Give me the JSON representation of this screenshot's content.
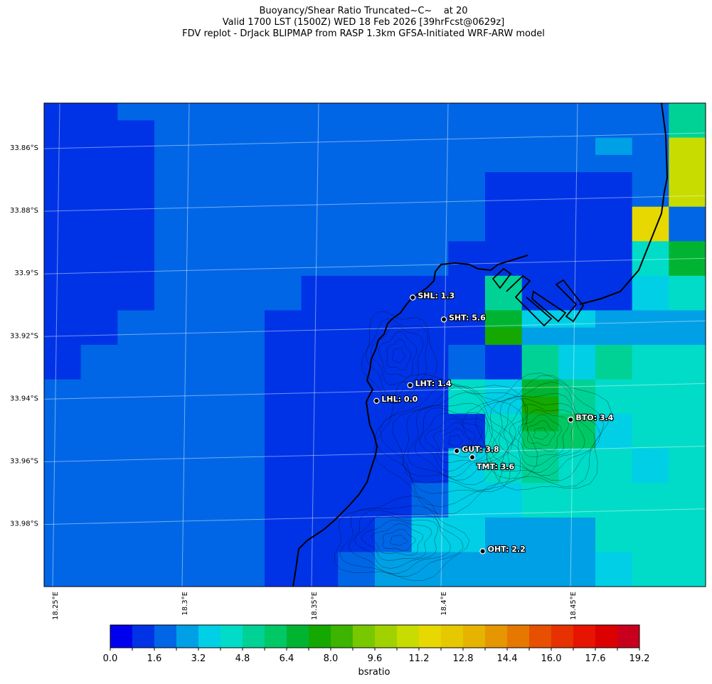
{
  "title": {
    "line1": "Buoyancy/Shear Ratio Truncated~C~    at 20",
    "line2": "Valid 1700 LST (1500Z) WED 18 Feb 2026 [39hrFcst@0629z]",
    "line3": "FDV replot - DrJack BLIPMAP from RASP 1.3km GFSA-Initiated WRF-ARW model"
  },
  "map": {
    "lat_labels": [
      "33.86°S",
      "33.88°S",
      "33.9°S",
      "33.92°S",
      "33.94°S",
      "33.96°S",
      "33.98°S"
    ],
    "lon_labels": [
      "18.25°E",
      "18.3°E",
      "18.35°E",
      "18.4°E",
      "18.45°E"
    ],
    "cell_value_grid": [
      [
        1,
        1,
        2,
        2,
        2,
        2,
        2,
        2,
        2,
        2,
        2,
        2,
        2,
        2,
        2,
        2,
        2,
        6
      ],
      [
        1,
        1,
        1,
        2,
        2,
        2,
        2,
        2,
        2,
        2,
        2,
        2,
        2,
        2,
        2,
        2,
        2,
        6
      ],
      [
        1,
        1,
        1,
        2,
        2,
        2,
        2,
        2,
        2,
        2,
        2,
        2,
        2,
        2,
        2,
        3,
        2,
        13
      ],
      [
        1,
        1,
        1,
        2,
        2,
        2,
        2,
        2,
        2,
        2,
        2,
        2,
        2,
        2,
        2,
        2,
        2,
        13
      ],
      [
        1,
        1,
        1,
        2,
        2,
        2,
        2,
        2,
        2,
        2,
        2,
        2,
        1,
        1,
        1,
        1,
        2,
        13
      ],
      [
        1,
        1,
        1,
        2,
        2,
        2,
        2,
        2,
        2,
        2,
        2,
        2,
        1,
        1,
        1,
        1,
        2,
        13
      ],
      [
        1,
        1,
        1,
        2,
        2,
        2,
        2,
        2,
        2,
        2,
        2,
        2,
        1,
        1,
        1,
        1,
        14,
        2
      ],
      [
        1,
        1,
        1,
        2,
        2,
        2,
        2,
        2,
        2,
        2,
        2,
        2,
        1,
        1,
        1,
        1,
        14,
        2
      ],
      [
        1,
        1,
        1,
        2,
        2,
        2,
        2,
        2,
        2,
        2,
        2,
        1,
        1,
        1,
        1,
        1,
        5,
        8
      ],
      [
        1,
        1,
        1,
        2,
        2,
        2,
        2,
        2,
        2,
        2,
        2,
        1,
        1,
        1,
        1,
        1,
        5,
        8
      ],
      [
        1,
        1,
        1,
        2,
        2,
        2,
        2,
        1,
        1,
        1,
        1,
        1,
        6,
        1,
        1,
        1,
        4,
        5
      ],
      [
        1,
        1,
        1,
        2,
        2,
        2,
        2,
        1,
        1,
        1,
        1,
        1,
        6,
        1,
        1,
        1,
        4,
        5
      ],
      [
        1,
        1,
        2,
        2,
        2,
        2,
        1,
        1,
        1,
        1,
        1,
        1,
        8,
        4,
        4,
        3,
        3,
        3
      ],
      [
        1,
        1,
        2,
        2,
        2,
        2,
        1,
        1,
        1,
        1,
        1,
        1,
        9,
        3,
        3,
        3,
        3,
        3
      ],
      [
        1,
        2,
        2,
        2,
        2,
        2,
        1,
        1,
        1,
        1,
        1,
        2,
        1,
        6,
        4,
        6,
        5,
        5
      ],
      [
        1,
        2,
        2,
        2,
        2,
        2,
        1,
        1,
        1,
        1,
        1,
        2,
        1,
        6,
        4,
        6,
        5,
        5
      ],
      [
        2,
        2,
        2,
        2,
        2,
        2,
        1,
        1,
        1,
        1,
        1,
        5,
        4,
        8,
        6,
        5,
        5,
        5
      ],
      [
        2,
        2,
        2,
        2,
        2,
        2,
        1,
        1,
        1,
        1,
        1,
        5,
        4,
        9,
        6,
        5,
        5,
        5
      ],
      [
        2,
        2,
        2,
        2,
        2,
        2,
        1,
        1,
        1,
        1,
        1,
        1,
        5,
        8,
        7,
        4,
        5,
        5
      ],
      [
        2,
        2,
        2,
        2,
        2,
        2,
        1,
        1,
        1,
        1,
        1,
        1,
        5,
        7,
        7,
        4,
        5,
        5
      ],
      [
        2,
        2,
        2,
        2,
        2,
        2,
        1,
        1,
        1,
        1,
        1,
        4,
        5,
        6,
        5,
        5,
        4,
        5
      ],
      [
        2,
        2,
        2,
        2,
        2,
        2,
        1,
        1,
        1,
        1,
        1,
        4,
        5,
        6,
        5,
        5,
        4,
        5
      ],
      [
        2,
        2,
        2,
        2,
        2,
        2,
        1,
        1,
        1,
        1,
        2,
        4,
        4,
        5,
        5,
        5,
        5,
        5
      ],
      [
        2,
        2,
        2,
        2,
        2,
        2,
        1,
        1,
        1,
        1,
        2,
        4,
        4,
        5,
        5,
        5,
        5,
        5
      ],
      [
        2,
        2,
        2,
        2,
        2,
        2,
        1,
        1,
        1,
        2,
        4,
        4,
        3,
        3,
        3,
        5,
        5,
        5
      ],
      [
        2,
        2,
        2,
        2,
        2,
        2,
        1,
        1,
        1,
        2,
        4,
        4,
        3,
        3,
        3,
        5,
        5,
        5
      ],
      [
        2,
        2,
        2,
        2,
        2,
        2,
        1,
        1,
        2,
        3,
        3,
        3,
        3,
        3,
        3,
        4,
        5,
        5
      ],
      [
        2,
        2,
        2,
        2,
        2,
        2,
        1,
        1,
        2,
        3,
        3,
        3,
        3,
        3,
        3,
        4,
        5,
        5
      ]
    ],
    "sites": [
      {
        "label": "SHL: 1.3",
        "lon": 18.388,
        "lat": -33.908
      },
      {
        "label": "SHT: 5.6",
        "lon": 18.4,
        "lat": -33.915
      },
      {
        "label": "LHT: 1.4",
        "lon": 18.387,
        "lat": -33.936
      },
      {
        "label": "LHL: 0.0",
        "lon": 18.374,
        "lat": -33.941
      },
      {
        "label": "BTO: 3.4",
        "lon": 18.449,
        "lat": -33.947
      },
      {
        "label": "GUT: 3.8",
        "lon": 18.405,
        "lat": -33.957
      },
      {
        "label": "TMT: 3.6",
        "lon": 18.411,
        "lat": -33.959
      },
      {
        "label": "OHT: 2.2",
        "lon": 18.415,
        "lat": -33.989
      }
    ]
  },
  "colorbar": {
    "tick_labels": [
      "0.0",
      "1.6",
      "3.2",
      "4.8",
      "6.4",
      "8.0",
      "9.6",
      "11.2",
      "12.8",
      "14.4",
      "16.0",
      "17.6",
      "19.2"
    ],
    "label": "bsratio",
    "colors": [
      "#0000ee",
      "#0033e6",
      "#0066e6",
      "#00a0e6",
      "#00cfe6",
      "#00dcc8",
      "#00d296",
      "#00c864",
      "#00b432",
      "#14a800",
      "#3cb400",
      "#78c800",
      "#a0d200",
      "#c8dc00",
      "#e6d800",
      "#e6c800",
      "#e6b400",
      "#e69600",
      "#e67800",
      "#e65000",
      "#e63200",
      "#e61400",
      "#dc0000",
      "#c8001e"
    ]
  }
}
